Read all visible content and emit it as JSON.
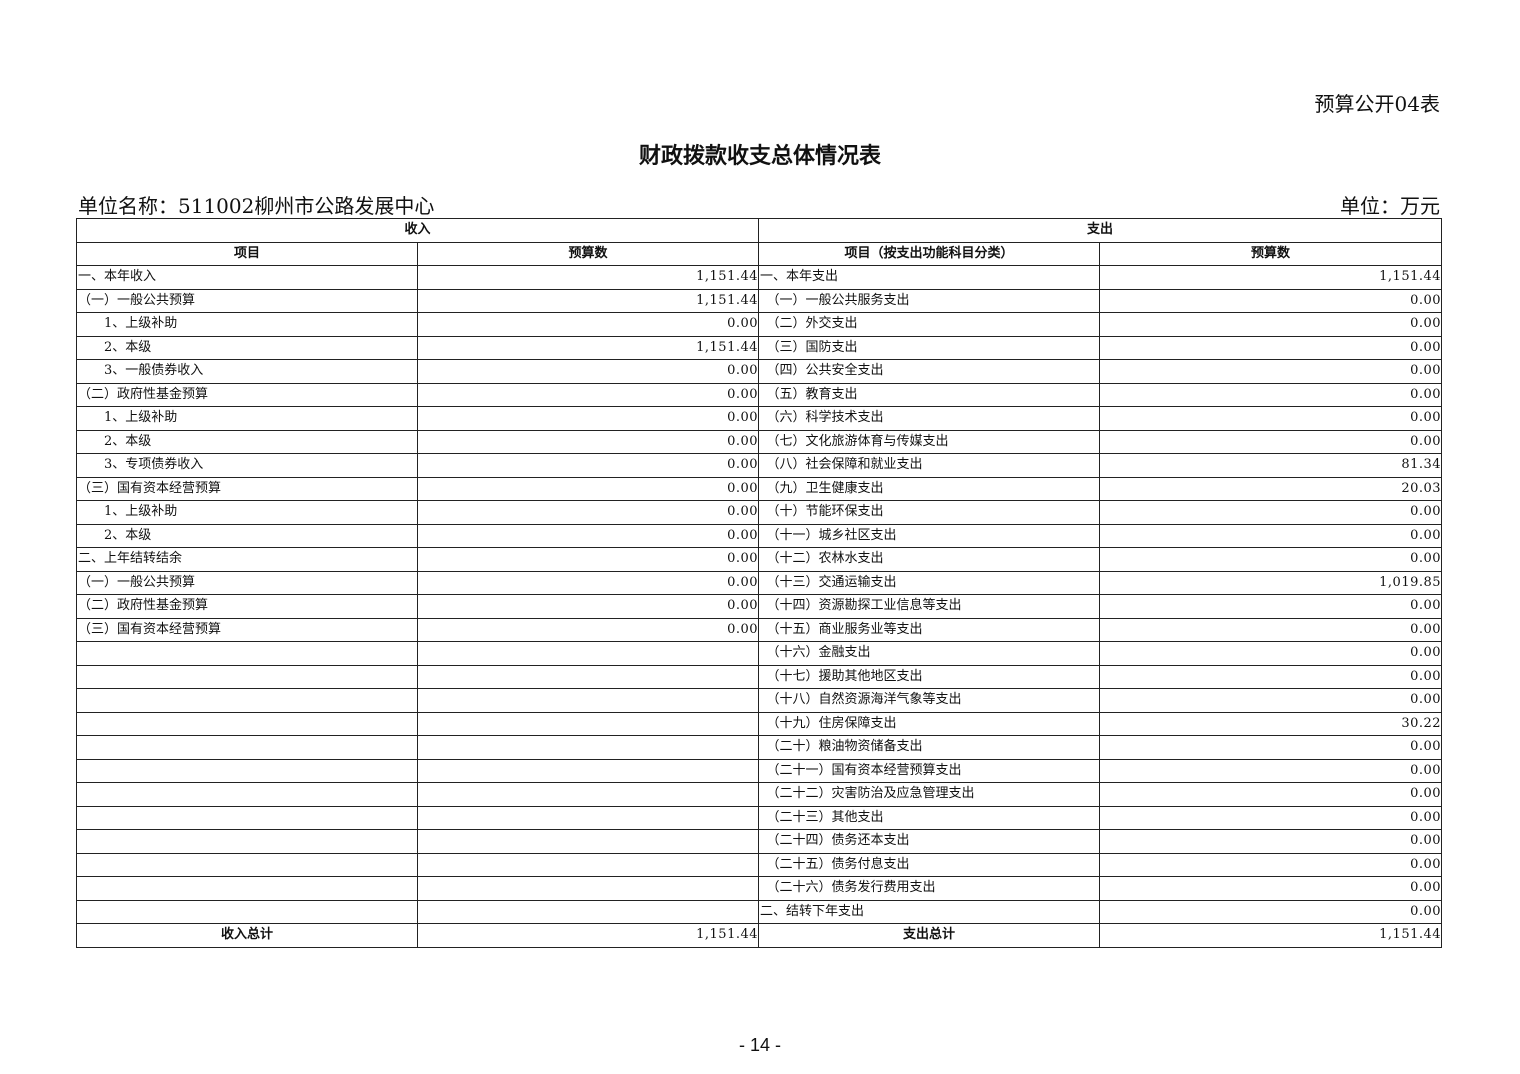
{
  "form_code": "预算公开04表",
  "title": "财政拨款收支总体情况表",
  "unit_name": "单位名称：511002柳州市公路发展中心",
  "unit": "单位：万元",
  "headers": {
    "income": "收入",
    "expense": "支出",
    "income_item": "项目",
    "income_amount": "预算数",
    "expense_item": "项目（按支出功能科目分类）",
    "expense_amount": "预算数"
  },
  "rows": [
    [
      "一、本年收入",
      "1,151.44",
      "一、本年支出",
      "1,151.44"
    ],
    [
      "（一）一般公共预算",
      "1,151.44",
      "　（一）一般公共服务支出",
      "0.00"
    ],
    [
      "　　1、上级补助",
      "0.00",
      "　（二）外交支出",
      "0.00"
    ],
    [
      "　　2、本级",
      "1,151.44",
      "　（三）国防支出",
      "0.00"
    ],
    [
      "　　3、一般债券收入",
      "0.00",
      "　（四）公共安全支出",
      "0.00"
    ],
    [
      "（二）政府性基金预算",
      "0.00",
      "　（五）教育支出",
      "0.00"
    ],
    [
      "　　1、上级补助",
      "0.00",
      "　（六）科学技术支出",
      "0.00"
    ],
    [
      "　　2、本级",
      "0.00",
      "　（七）文化旅游体育与传媒支出",
      "0.00"
    ],
    [
      "　　3、专项债券收入",
      "0.00",
      "　（八）社会保障和就业支出",
      "81.34"
    ],
    [
      "（三）国有资本经营预算",
      "0.00",
      "　（九）卫生健康支出",
      "20.03"
    ],
    [
      "　　1、上级补助",
      "0.00",
      "　（十）节能环保支出",
      "0.00"
    ],
    [
      "　　2、本级",
      "0.00",
      "　（十一）城乡社区支出",
      "0.00"
    ],
    [
      "二、上年结转结余",
      "0.00",
      "　（十二）农林水支出",
      "0.00"
    ],
    [
      "（一）一般公共预算",
      "0.00",
      "　（十三）交通运输支出",
      "1,019.85"
    ],
    [
      "（二）政府性基金预算",
      "0.00",
      "　（十四）资源勘探工业信息等支出",
      "0.00"
    ],
    [
      "（三）国有资本经营预算",
      "0.00",
      "　（十五）商业服务业等支出",
      "0.00"
    ],
    [
      "",
      "",
      "　（十六）金融支出",
      "0.00"
    ],
    [
      "",
      "",
      "　（十七）援助其他地区支出",
      "0.00"
    ],
    [
      "",
      "",
      "　（十八）自然资源海洋气象等支出",
      "0.00"
    ],
    [
      "",
      "",
      "　（十九）住房保障支出",
      "30.22"
    ],
    [
      "",
      "",
      "　（二十）粮油物资储备支出",
      "0.00"
    ],
    [
      "",
      "",
      "　（二十一）国有资本经营预算支出",
      "0.00"
    ],
    [
      "",
      "",
      "　（二十二）灾害防治及应急管理支出",
      "0.00"
    ],
    [
      "",
      "",
      "　（二十三）其他支出",
      "0.00"
    ],
    [
      "",
      "",
      "　（二十四）债务还本支出",
      "0.00"
    ],
    [
      "",
      "",
      "　（二十五）债务付息支出",
      "0.00"
    ],
    [
      "",
      "",
      "　（二十六）债务发行费用支出",
      "0.00"
    ],
    [
      "",
      "",
      "二、结转下年支出",
      "0.00"
    ]
  ],
  "totals": {
    "income_label": "收入总计",
    "income_value": "1,151.44",
    "expense_label": "支出总计",
    "expense_value": "1,151.44"
  },
  "page_number": "- 14 -"
}
